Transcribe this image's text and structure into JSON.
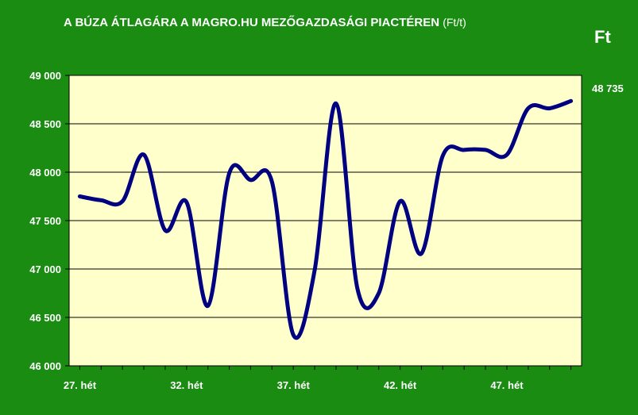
{
  "header": {
    "title": "A BÚZA ÁTLAGÁRA A MAGRO.HU MEZŐGAZDASÁGI PIACTÉREN",
    "unit": "(Ft/t)",
    "currency": "Ft"
  },
  "colors": {
    "background": "#1a8c12",
    "plot_area": "#ffffcc",
    "line": "#000080",
    "gridline": "#000000",
    "text": "#ffffff"
  },
  "chart_data": {
    "type": "line",
    "x": [
      27,
      28,
      29,
      30,
      31,
      32,
      33,
      34,
      35,
      36,
      37,
      38,
      39,
      40,
      41,
      42,
      43,
      44,
      45,
      46,
      47,
      48,
      49,
      50
    ],
    "xlim": [
      26.5,
      50.5
    ],
    "x_ticks": [
      {
        "value": 27,
        "label": "27. hét"
      },
      {
        "value": 32,
        "label": "32. hét"
      },
      {
        "value": 37,
        "label": "37. hét"
      },
      {
        "value": 42,
        "label": "42. hét"
      },
      {
        "value": 47,
        "label": "47. hét"
      }
    ],
    "ylim": [
      46000,
      49000
    ],
    "y_ticks": [
      {
        "value": 46000,
        "label": "46 000"
      },
      {
        "value": 46500,
        "label": "46 500"
      },
      {
        "value": 47000,
        "label": "47 000"
      },
      {
        "value": 47500,
        "label": "47 500"
      },
      {
        "value": 48000,
        "label": "48 000"
      },
      {
        "value": 48500,
        "label": "48 500"
      },
      {
        "value": 49000,
        "label": "49 000"
      }
    ],
    "grid": true,
    "series": [
      {
        "values": [
          47750,
          47710,
          47700,
          48180,
          47400,
          47690,
          46620,
          47990,
          47920,
          47900,
          46320,
          46990,
          48710,
          46800,
          46750,
          47700,
          47160,
          48170,
          48230,
          48230,
          48180,
          48660,
          48660,
          48735
        ]
      }
    ],
    "last_value_label": "48 735"
  }
}
